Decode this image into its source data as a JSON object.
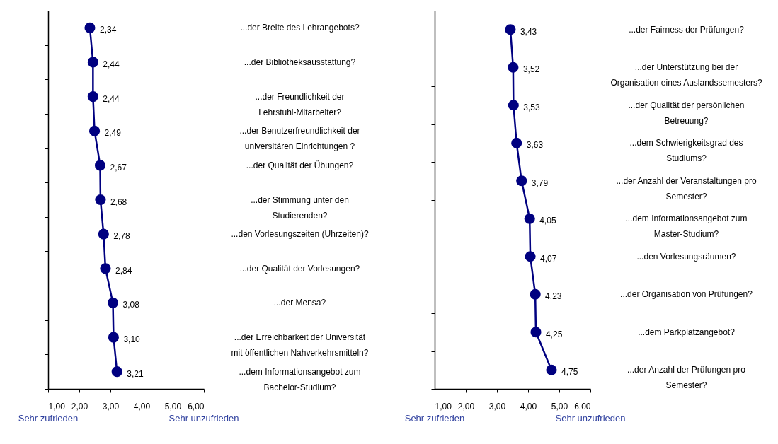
{
  "chart_data": [
    {
      "type": "line",
      "orientation": "horizontal",
      "color": "#000080",
      "marker": "circle",
      "line_style": "solid",
      "grid": false,
      "categories": [
        "...der Breite des Lehrangebots?",
        "...der Bibliotheksausstattung?",
        "...der Freundlichkeit der Lehrstuhl-Mitarbeiter?",
        "...der Benutzerfreundlichkeit der universitären Einrichtungen ?",
        "...der Qualität der Übungen?",
        "...der Stimmung unter den Studierenden?",
        "...den Vorlesungszeiten (Uhrzeiten)?",
        "...der Qualität der Vorlesungen?",
        "...der Mensa?",
        "...der Erreichbarkeit der Universität mit öffentlichen Nahverkehrsmitteln?",
        "...dem Informationsangebot zum Bachelor-Studium?"
      ],
      "values": [
        2.34,
        2.44,
        2.44,
        2.49,
        2.67,
        2.68,
        2.78,
        2.84,
        3.08,
        3.1,
        3.21
      ],
      "value_labels": [
        "2,34",
        "2,44",
        "2,44",
        "2,49",
        "2,67",
        "2,68",
        "2,78",
        "2,84",
        "3,08",
        "3,10",
        "3,21"
      ],
      "xlim": [
        1,
        6
      ],
      "xticks": [
        {
          "value": 1,
          "label": "1,00"
        },
        {
          "value": 2,
          "label": "2,00"
        },
        {
          "value": 3,
          "label": "3,00"
        },
        {
          "value": 4,
          "label": "4,00"
        },
        {
          "value": 5,
          "label": "5,00"
        },
        {
          "value": 6,
          "label": "6,00"
        }
      ],
      "annotations": [
        "Sehr zufrieden",
        "Sehr unzufrieden"
      ]
    },
    {
      "type": "line",
      "orientation": "horizontal",
      "color": "#000080",
      "marker": "circle",
      "line_style": "solid",
      "grid": false,
      "categories": [
        "...der Fairness der Prüfungen?",
        "...der Unterstützung bei der Organisation eines Auslandssemesters?",
        "...der Qualität der persönlichen Betreuung?",
        "...dem Schwierigkeitsgrad des Studiums?",
        "...der Anzahl der Veranstaltungen pro Semester?",
        "...dem Informationsangebot zum Master-Studium?",
        "...den Vorlesungsräumen?",
        "...der Organisation von Prüfungen?",
        "...dem Parkplatzangebot?",
        "...der Anzahl der Prüfungen pro Semester?"
      ],
      "values": [
        3.43,
        3.52,
        3.53,
        3.63,
        3.79,
        4.05,
        4.07,
        4.23,
        4.25,
        4.75
      ],
      "value_labels": [
        "3,43",
        "3,52",
        "3,53",
        "3,63",
        "3,79",
        "4,05",
        "4,07",
        "4,23",
        "4,25",
        "4,75"
      ],
      "xlim": [
        1,
        6
      ],
      "xticks": [
        {
          "value": 1,
          "label": "1,00"
        },
        {
          "value": 2,
          "label": "2,00"
        },
        {
          "value": 3,
          "label": "3,00"
        },
        {
          "value": 4,
          "label": "4,00"
        },
        {
          "value": 5,
          "label": "5,00"
        },
        {
          "value": 6,
          "label": "6,00"
        }
      ],
      "annotations": [
        "Sehr zufrieden",
        "Sehr unzufrieden"
      ]
    }
  ]
}
